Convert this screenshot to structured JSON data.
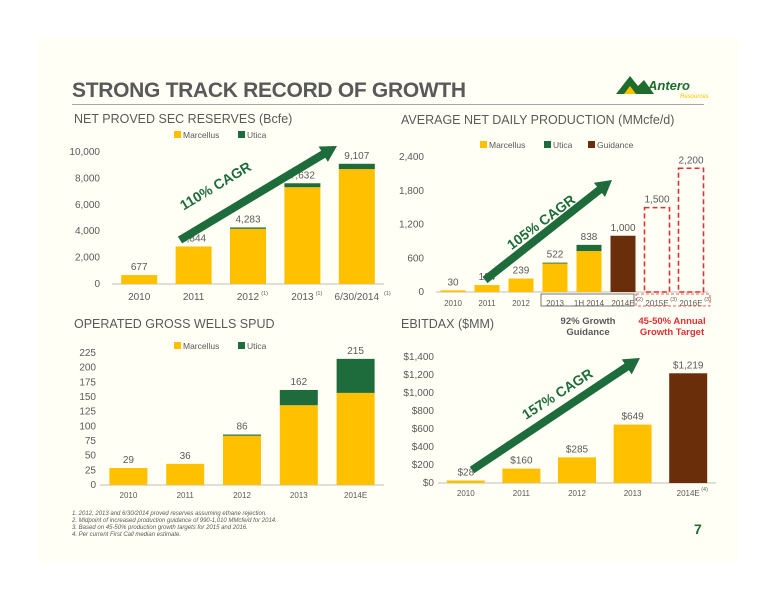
{
  "title": "STRONG TRACK RECORD OF GROWTH",
  "logo": {
    "name": "Antero",
    "sub": "Resources"
  },
  "page_number": "7",
  "colors": {
    "marcellus": "#ffc000",
    "utica": "#1e6b3c",
    "guidance": "#6b2e0b",
    "arrow": "#1e6b3c",
    "target_box": "#e03030",
    "text": "#595959"
  },
  "footnotes": [
    "1. 2012, 2013 and 6/30/2014 proved reserves assuming ethane rejection.",
    "2. Midpoint of increased production guidance of 990-1,010 MMcfe/d for 2014.",
    "3. Based on 45-50% production growth targets for 2015 and 2016.",
    "4. Per current First Call median estimate."
  ],
  "notes": {
    "guidance": "92% Growth\nGuidance",
    "target": "45-50% Annual\nGrowth Target"
  },
  "chart_data": [
    {
      "id": "reserves",
      "type": "bar",
      "title": "NET PROVED SEC RESERVES (Bcfe)",
      "categories": [
        "2010",
        "2011",
        "2012",
        "2013",
        "6/30/2014"
      ],
      "footnote_marks": [
        "",
        "",
        "(1)",
        "(1)",
        "(1)"
      ],
      "series": [
        {
          "name": "Marcellus",
          "values": [
            677,
            2844,
            4183,
            7332,
            8707
          ]
        },
        {
          "name": "Utica",
          "values": [
            0,
            0,
            100,
            300,
            400
          ]
        }
      ],
      "totals": [
        "677",
        "2,844",
        "4,283",
        "7,632",
        "9,107"
      ],
      "ylim": [
        0,
        10000
      ],
      "yticks": [
        "0",
        "2,000",
        "4,000",
        "6,000",
        "8,000",
        "10,000"
      ],
      "annotation": "110% CAGR",
      "legend": "top"
    },
    {
      "id": "production",
      "type": "bar",
      "title": "AVERAGE NET DAILY PRODUCTION (MMcfe/d)",
      "categories": [
        "2010",
        "2011",
        "2012",
        "2013",
        "1H 2014",
        "2014E",
        "2015E",
        "2016E"
      ],
      "footnote_marks": [
        "",
        "",
        "",
        "",
        "",
        "(2)",
        "(3)",
        "(3)"
      ],
      "series": [
        {
          "name": "Marcellus",
          "values": [
            30,
            124,
            239,
            507,
            728,
            0,
            0,
            0
          ]
        },
        {
          "name": "Utica",
          "values": [
            0,
            0,
            0,
            15,
            110,
            0,
            0,
            0
          ]
        },
        {
          "name": "Guidance",
          "values": [
            0,
            0,
            0,
            0,
            0,
            1000,
            0,
            0
          ]
        }
      ],
      "targets": [
        null,
        null,
        null,
        null,
        null,
        null,
        1500,
        2200
      ],
      "totals": [
        "30",
        "124",
        "239",
        "522",
        "838",
        "1,000",
        "1,500",
        "2,200"
      ],
      "ylim": [
        0,
        2400
      ],
      "yticks": [
        "0",
        "600",
        "1,200",
        "1,800",
        "2,400"
      ],
      "annotation": "105% CAGR",
      "legend": "top"
    },
    {
      "id": "wells",
      "type": "bar",
      "title": "OPERATED GROSS WELLS SPUD",
      "categories": [
        "2010",
        "2011",
        "2012",
        "2013",
        "2014E"
      ],
      "series": [
        {
          "name": "Marcellus",
          "values": [
            29,
            36,
            84,
            136,
            157
          ]
        },
        {
          "name": "Utica",
          "values": [
            0,
            0,
            2,
            26,
            58
          ]
        }
      ],
      "totals": [
        "29",
        "36",
        "86",
        "162",
        "215"
      ],
      "ylim": [
        0,
        225
      ],
      "yticks": [
        "0",
        "25",
        "50",
        "75",
        "100",
        "125",
        "150",
        "175",
        "200",
        "225"
      ],
      "legend": "top"
    },
    {
      "id": "ebitdax",
      "type": "bar",
      "title": "EBITDAX ($MM)",
      "categories": [
        "2010",
        "2011",
        "2012",
        "2013",
        "2014E"
      ],
      "footnote_marks": [
        "",
        "",
        "",
        "",
        "(4)"
      ],
      "values": [
        28,
        160,
        285,
        649,
        1219
      ],
      "labels": [
        "$28",
        "$160",
        "$285",
        "$649",
        "$1,219"
      ],
      "ylim": [
        0,
        1400
      ],
      "yticks": [
        "$0",
        "$200",
        "$400",
        "$600",
        "$800",
        "$1,000",
        "$1,200",
        "$1,400"
      ],
      "annotation": "157% CAGR"
    }
  ]
}
